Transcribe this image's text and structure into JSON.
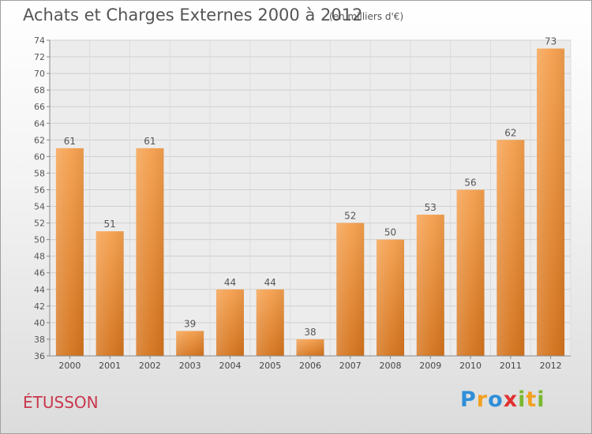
{
  "chart_data": {
    "type": "bar",
    "title": "Achats et Charges Externes 2000 à 2012",
    "subtitle": "(en milliers d'€)",
    "categories": [
      "2000",
      "2001",
      "2002",
      "2003",
      "2004",
      "2005",
      "2006",
      "2007",
      "2008",
      "2009",
      "2010",
      "2011",
      "2012"
    ],
    "values": [
      61,
      51,
      61,
      39,
      44,
      44,
      38,
      52,
      50,
      53,
      56,
      62,
      73
    ],
    "value_labels": [
      "61",
      "51",
      "61",
      "39",
      "44",
      "44",
      "38",
      "52",
      "50",
      "53",
      "56",
      "62",
      "73"
    ],
    "ylim": [
      36,
      74
    ],
    "yticks": [
      "36",
      "38",
      "40",
      "42",
      "44",
      "46",
      "48",
      "50",
      "52",
      "54",
      "56",
      "58",
      "60",
      "62",
      "64",
      "66",
      "68",
      "70",
      "72",
      "74"
    ],
    "grid": true,
    "bar_color": "#f08a30",
    "xlabel": "",
    "ylabel": ""
  },
  "location": "ÉTUSSON",
  "brand": {
    "letters": [
      "P",
      "r",
      "o",
      "x",
      "i",
      "t",
      "i"
    ],
    "colors": [
      "#2f8fd8",
      "#f2a020",
      "#2f8fd8",
      "#e03030",
      "#7ab830",
      "#f2a020",
      "#7ab830"
    ]
  }
}
